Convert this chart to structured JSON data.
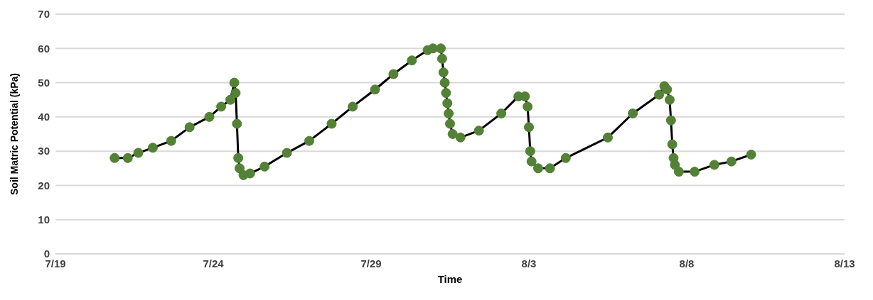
{
  "chart_data": {
    "type": "line",
    "xlabel": "Time",
    "ylabel": "Soil Matric Potential (kPa)",
    "x": [
      "--07-20T21:00",
      "--07-21T07:00",
      "--07-21T15:00",
      "--07-22T02:00",
      "--07-22T16:00",
      "--07-23T06:00",
      "--07-23T21:00",
      "--07-24T06:00",
      "--07-24T13:00",
      "--07-24T16:00",
      "--07-24T17:00",
      "--07-24T18:00",
      "--07-24T19:00",
      "--07-24T20:00",
      "--07-24T23:00",
      "--07-25T04:00",
      "--07-25T15:00",
      "--07-26T08:00",
      "--07-27T01:00",
      "--07-27T18:00",
      "--07-28T10:00",
      "--07-29T03:00",
      "--07-29T17:00",
      "--07-30T07:00",
      "--07-30T19:00",
      "--07-30T23:00",
      "--07-31T05:00",
      "--07-31T06:00",
      "--07-31T07:00",
      "--07-31T08:00",
      "--07-31T09:00",
      "--07-31T10:00",
      "--07-31T11:00",
      "--07-31T12:00",
      "--07-31T14:00",
      "--07-31T20:00",
      "--08-01T10:00",
      "--08-02T03:00",
      "--08-02T16:00",
      "--08-02T21:00",
      "--08-02T23:00",
      "--08-03T00:00",
      "--08-03T01:00",
      "--08-03T02:00",
      "--08-03T07:00",
      "--08-03T16:00",
      "--08-04T04:00",
      "--08-05T12:00",
      "--08-06T07:00",
      "--08-07T03:00",
      "--08-07T07:00",
      "--08-07T09:00",
      "--08-07T11:00",
      "--08-07T12:00",
      "--08-07T13:00",
      "--08-07T14:00",
      "--08-07T15:00",
      "--08-07T18:00",
      "--08-08T06:00",
      "--08-08T21:00",
      "--08-09T10:00",
      "--08-10T01:00"
    ],
    "series": [
      {
        "color": "#538135",
        "values": [
          28,
          28,
          29.5,
          31,
          33,
          37,
          40,
          43,
          45,
          50,
          47,
          38,
          28,
          25,
          23,
          23.5,
          25.5,
          29.5,
          33,
          38,
          43,
          48,
          52.5,
          56.5,
          59.5,
          60,
          60,
          57,
          53,
          50,
          47,
          44,
          41,
          38,
          35,
          34,
          36,
          41,
          46,
          46,
          43,
          37,
          30,
          27,
          25,
          25,
          28,
          34,
          41,
          46.5,
          49,
          48,
          45,
          39,
          32,
          28,
          26,
          24,
          24,
          26,
          27,
          29
        ]
      }
    ],
    "xlim": [
      "--07-19",
      "--08-13"
    ],
    "xticks": [
      {
        "value": "--07-19",
        "label": "7/19"
      },
      {
        "value": "--07-24",
        "label": "7/24"
      },
      {
        "value": "--07-29",
        "label": "7/29"
      },
      {
        "value": "--08-03",
        "label": "8/3"
      },
      {
        "value": "--08-08",
        "label": "8/8"
      },
      {
        "value": "--08-13",
        "label": "8/13"
      }
    ],
    "ylim": [
      0,
      70
    ],
    "yticks": [
      0,
      10,
      20,
      30,
      40,
      50,
      60,
      70
    ],
    "grid": "y",
    "marker": "circle",
    "line_style": "solid"
  }
}
